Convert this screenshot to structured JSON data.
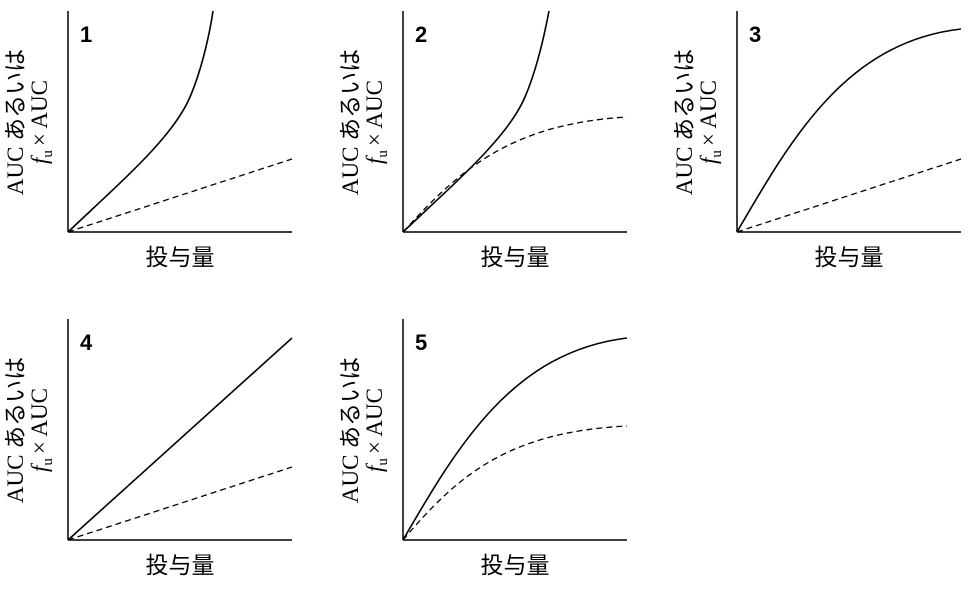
{
  "panels": [
    {
      "number": "1",
      "y_label": {
        "line1": "AUC あるいは",
        "f": "f",
        "sub": "u",
        "rest": "× AUC"
      },
      "x_label": "投与量"
    },
    {
      "number": "2",
      "y_label": {
        "line1": "AUC あるいは",
        "f": "f",
        "sub": "u",
        "rest": "× AUC"
      },
      "x_label": "投与量"
    },
    {
      "number": "3",
      "y_label": {
        "line1": "AUC あるいは",
        "f": "f",
        "sub": "u",
        "rest": "× AUC"
      },
      "x_label": "投与量"
    },
    {
      "number": "4",
      "y_label": {
        "line1": "AUC あるいは",
        "f": "f",
        "sub": "u",
        "rest": "× AUC"
      },
      "x_label": "投与量"
    },
    {
      "number": "5",
      "y_label": {
        "line1": "AUC あるいは",
        "f": "f",
        "sub": "u",
        "rest": "× AUC"
      },
      "x_label": "投与量"
    }
  ]
}
